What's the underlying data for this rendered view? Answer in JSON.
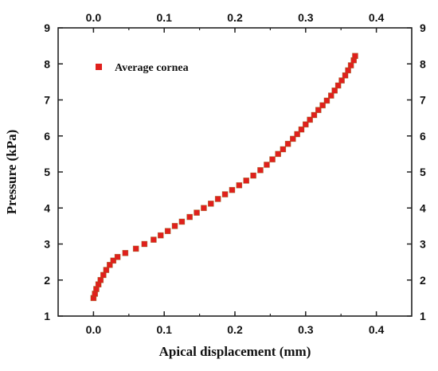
{
  "chart_data": {
    "type": "scatter",
    "xlabel": "Apical displacement (mm)",
    "ylabel": "Pressure (kPa)",
    "xlim": [
      -0.05,
      0.45
    ],
    "ylim": [
      1,
      9
    ],
    "xticks": [
      "0.0",
      "0.1",
      "0.2",
      "0.3",
      "0.4"
    ],
    "yticks": [
      "1",
      "2",
      "3",
      "4",
      "5",
      "6",
      "7",
      "8",
      "9"
    ],
    "grid": false,
    "legend_position": "top-left",
    "marker_color": "#e0201c",
    "series": [
      {
        "name": "Average cornea",
        "x": [
          0.0,
          0.002,
          0.004,
          0.007,
          0.01,
          0.014,
          0.018,
          0.023,
          0.028,
          0.034,
          0.045,
          0.06,
          0.072,
          0.085,
          0.095,
          0.105,
          0.115,
          0.125,
          0.136,
          0.146,
          0.156,
          0.166,
          0.176,
          0.186,
          0.196,
          0.206,
          0.216,
          0.226,
          0.236,
          0.245,
          0.253,
          0.261,
          0.268,
          0.275,
          0.282,
          0.288,
          0.294,
          0.3,
          0.306,
          0.312,
          0.318,
          0.324,
          0.33,
          0.336,
          0.341,
          0.346,
          0.351,
          0.356,
          0.36,
          0.364,
          0.368,
          0.37
        ],
        "y": [
          1.5,
          1.62,
          1.75,
          1.88,
          2.0,
          2.14,
          2.28,
          2.42,
          2.54,
          2.64,
          2.75,
          2.87,
          3.0,
          3.12,
          3.24,
          3.36,
          3.5,
          3.62,
          3.75,
          3.87,
          4.0,
          4.12,
          4.25,
          4.38,
          4.5,
          4.63,
          4.76,
          4.9,
          5.05,
          5.2,
          5.35,
          5.5,
          5.63,
          5.78,
          5.92,
          6.05,
          6.18,
          6.32,
          6.45,
          6.58,
          6.72,
          6.85,
          6.98,
          7.12,
          7.26,
          7.4,
          7.54,
          7.68,
          7.82,
          7.96,
          8.1,
          8.22
        ]
      }
    ]
  }
}
